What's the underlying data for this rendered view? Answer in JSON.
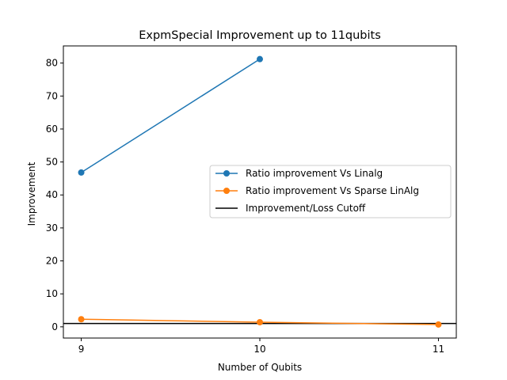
{
  "chart_data": {
    "type": "line",
    "title": "ExpmSpecial Improvement up to 11qubits",
    "xlabel": "Number of Qubits",
    "ylabel": "Improvement",
    "xlim": [
      8.9,
      11.1
    ],
    "ylim": [
      -3.4,
      85.2
    ],
    "xticks": [
      9,
      10,
      11
    ],
    "yticks": [
      0,
      10,
      20,
      30,
      40,
      50,
      60,
      70,
      80
    ],
    "grid": false,
    "legend_position": "center-right",
    "series": [
      {
        "name": "Ratio improvement Vs Linalg",
        "color": "#1f77b4",
        "marker": "circle",
        "x": [
          9,
          10
        ],
        "y": [
          46.8,
          81.2
        ]
      },
      {
        "name": "Ratio improvement Vs Sparse LinAlg",
        "color": "#ff7f0e",
        "marker": "circle",
        "x": [
          9,
          10,
          11
        ],
        "y": [
          2.3,
          1.4,
          0.7
        ]
      }
    ],
    "reference_lines": [
      {
        "name": "Improvement/Loss Cutoff",
        "color": "#000000",
        "orientation": "horizontal",
        "y": 1
      }
    ]
  }
}
